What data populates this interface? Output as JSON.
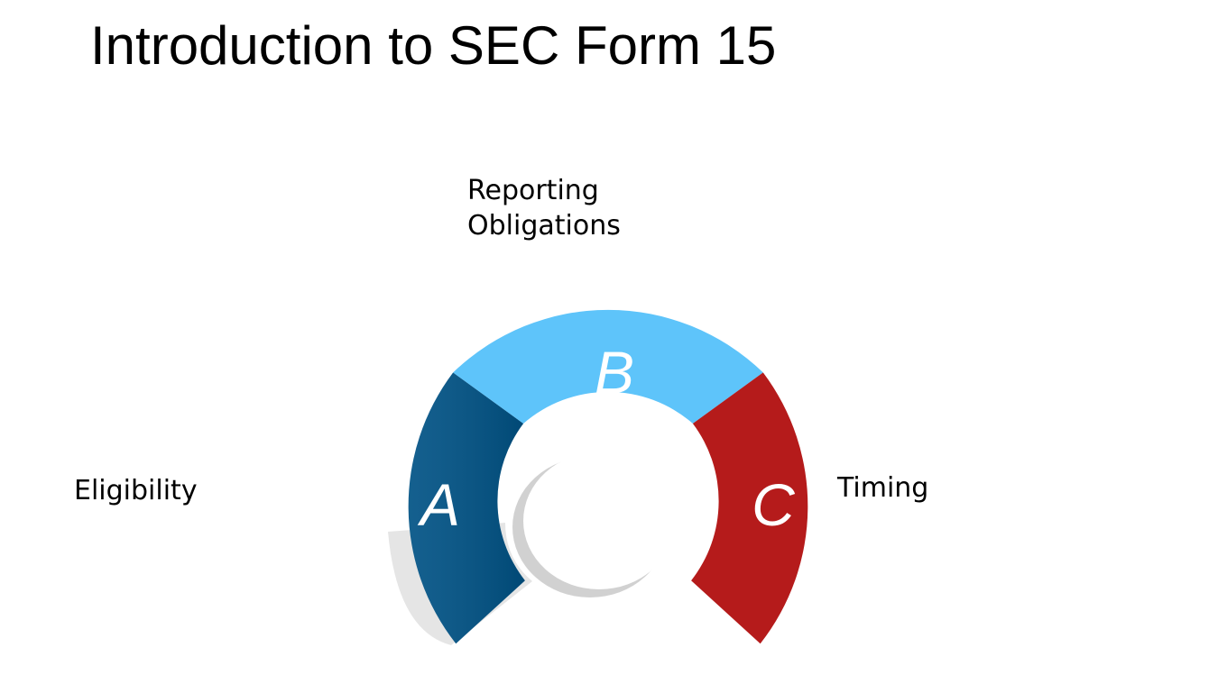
{
  "title": "Introduction to SEC Form 15",
  "segments": [
    {
      "letter": "A",
      "label": "Eligibility",
      "color": "#005285"
    },
    {
      "letter": "B",
      "label_lines": [
        "Reporting",
        "Obligations"
      ],
      "color": "#5ec4fa"
    },
    {
      "letter": "C",
      "label": "Timing",
      "color": "#b51b1b"
    }
  ]
}
